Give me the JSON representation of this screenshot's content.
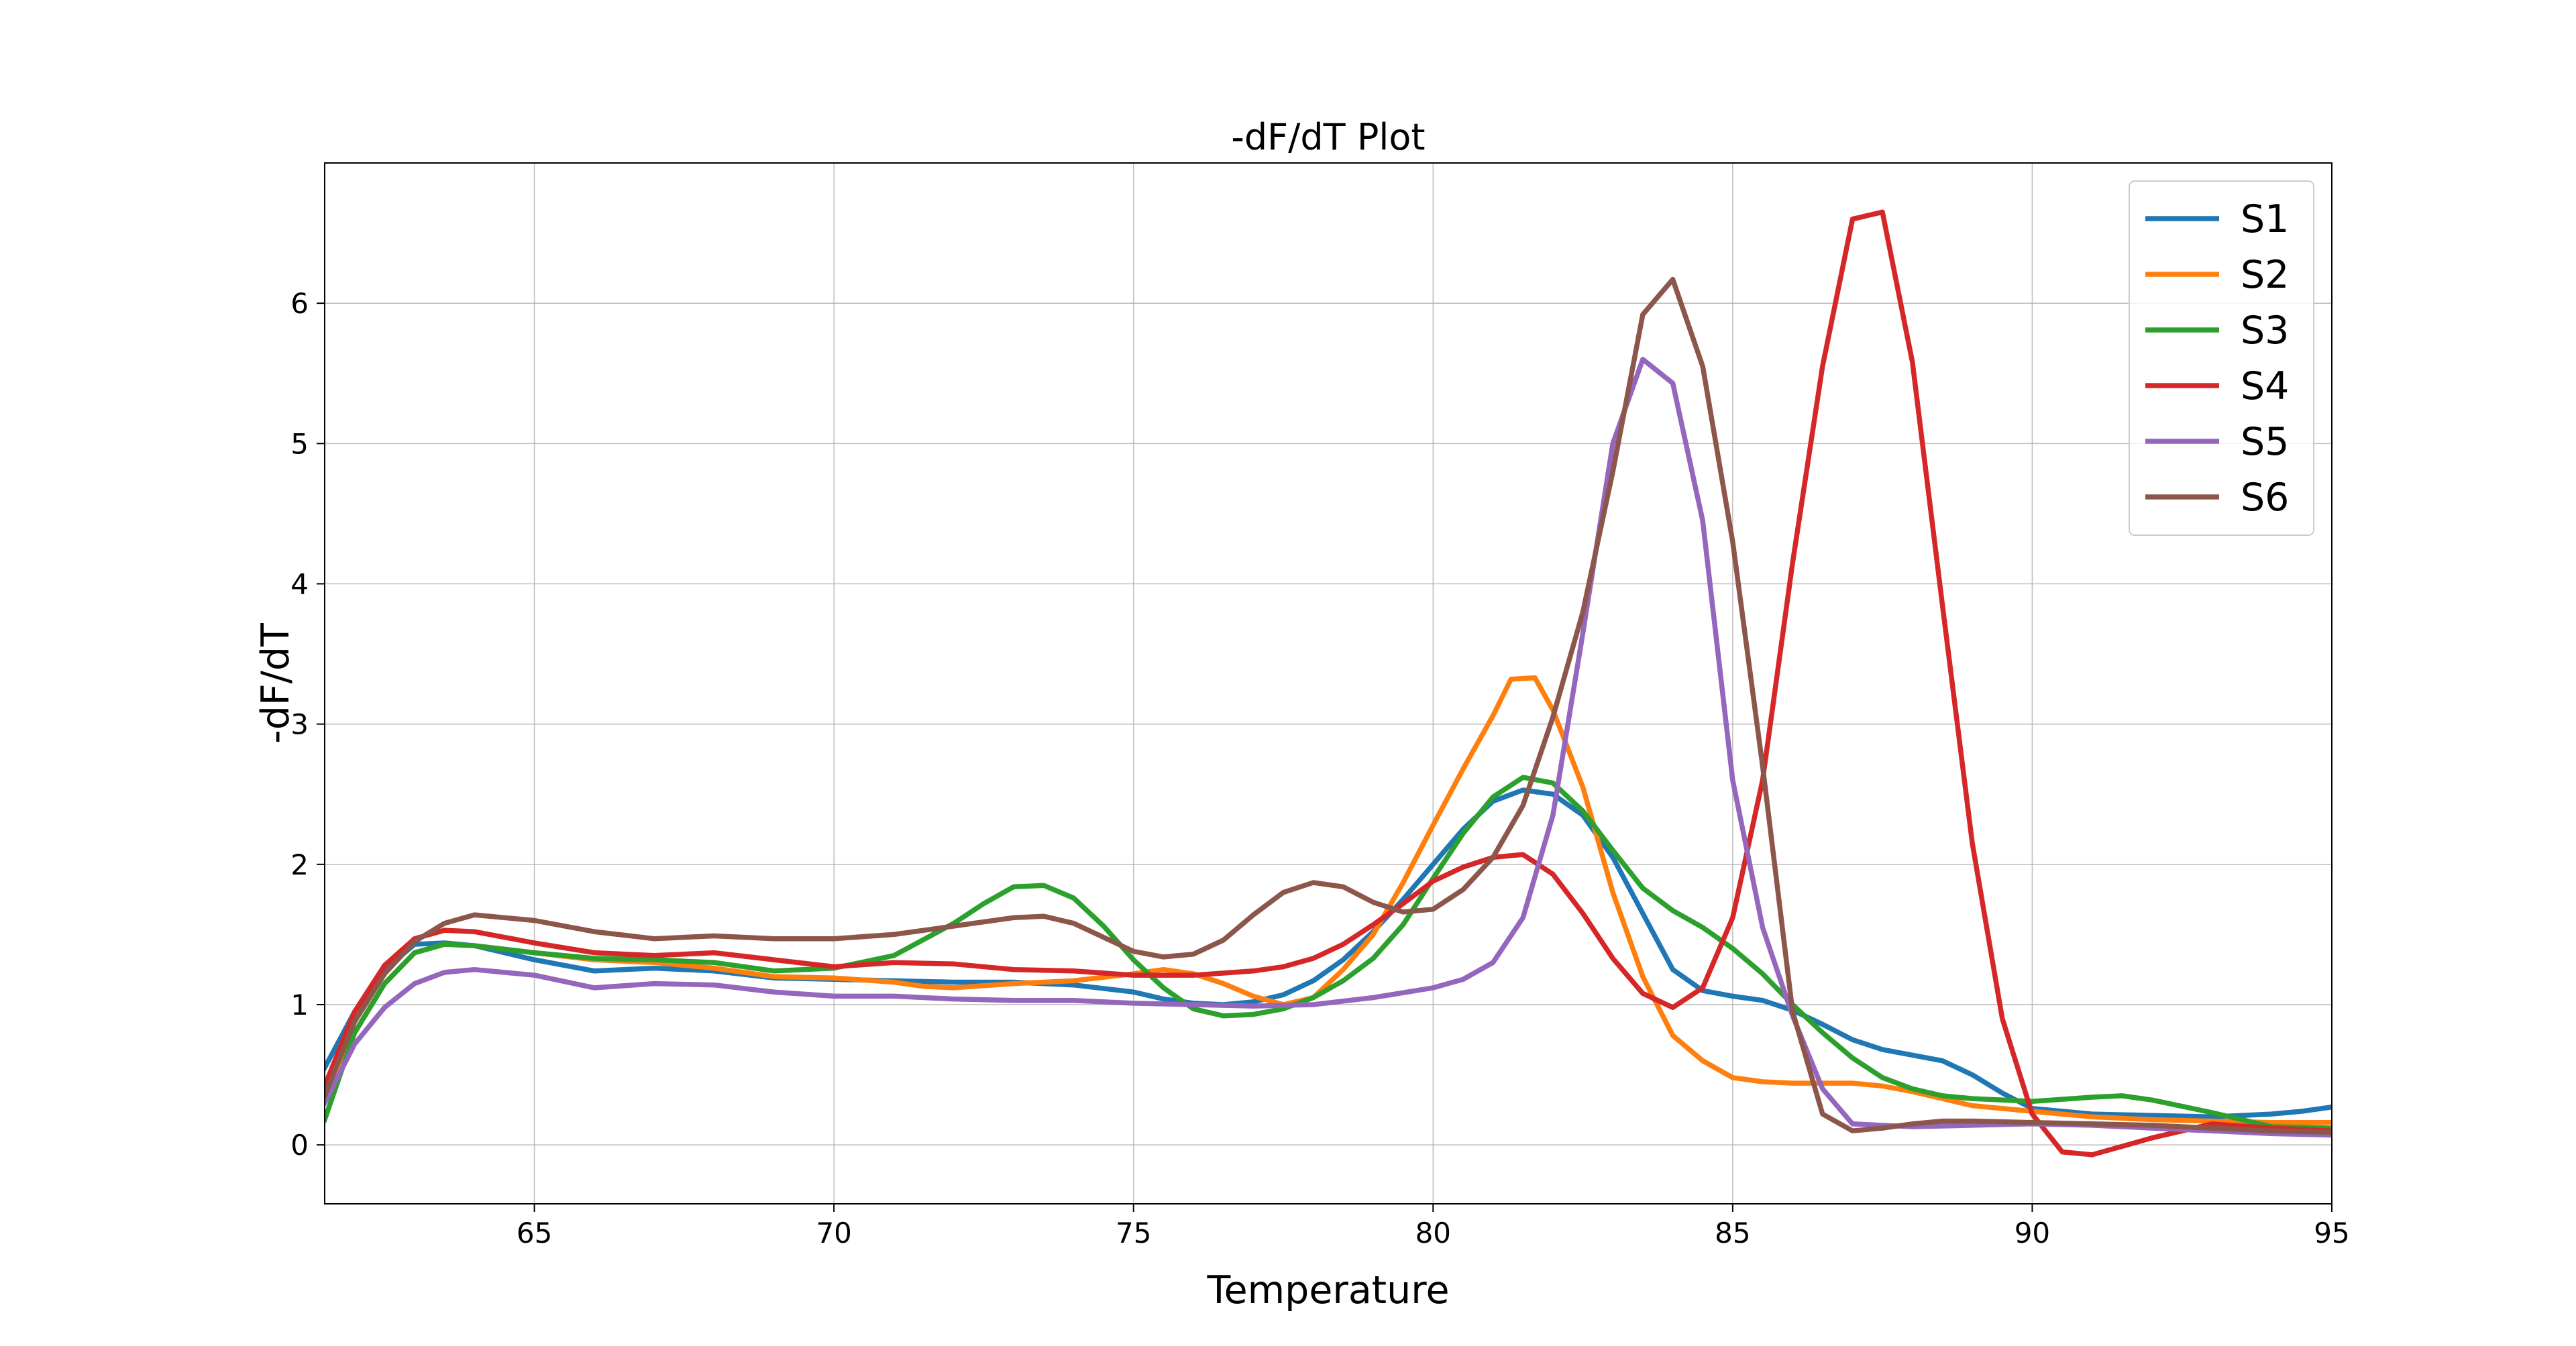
{
  "chart_data": {
    "type": "line",
    "title": "-dF/dT Plot",
    "xlabel": "Temperature",
    "ylabel": "-dF/dT",
    "xlim": [
      61.5,
      95
    ],
    "ylim": [
      -0.42,
      7.0
    ],
    "xticks": [
      65,
      70,
      75,
      80,
      85,
      90,
      95
    ],
    "yticks": [
      0,
      1,
      2,
      3,
      4,
      5,
      6
    ],
    "grid": true,
    "legend_position": "top-right",
    "series": [
      {
        "name": "S1",
        "color": "#1f77b4",
        "x": [
          61.5,
          62.0,
          62.5,
          63.0,
          63.5,
          64.0,
          65.0,
          66.0,
          67.0,
          68.0,
          69.0,
          70.0,
          71.0,
          72.0,
          73.0,
          74.0,
          75.0,
          75.5,
          76.0,
          76.5,
          77.0,
          77.5,
          78.0,
          78.5,
          79.0,
          79.5,
          80.0,
          80.5,
          81.0,
          81.5,
          82.0,
          82.5,
          83.0,
          83.5,
          84.0,
          84.5,
          85.0,
          85.5,
          86.0,
          86.5,
          87.0,
          87.5,
          88.0,
          88.5,
          89.0,
          89.5,
          90.0,
          91.0,
          92.0,
          93.0,
          94.0,
          94.5,
          95.0
        ],
        "y": [
          0.55,
          0.95,
          1.25,
          1.43,
          1.44,
          1.42,
          1.32,
          1.24,
          1.26,
          1.24,
          1.19,
          1.18,
          1.17,
          1.16,
          1.16,
          1.14,
          1.09,
          1.04,
          1.01,
          1.0,
          1.02,
          1.07,
          1.17,
          1.32,
          1.52,
          1.75,
          2.0,
          2.25,
          2.45,
          2.53,
          2.5,
          2.35,
          2.05,
          1.65,
          1.25,
          1.1,
          1.06,
          1.03,
          0.96,
          0.86,
          0.75,
          0.68,
          0.64,
          0.6,
          0.5,
          0.37,
          0.26,
          0.22,
          0.21,
          0.2,
          0.22,
          0.24,
          0.27
        ]
      },
      {
        "name": "S2",
        "color": "#ff7f0e",
        "x": [
          61.5,
          62.0,
          62.5,
          63.0,
          63.5,
          64.0,
          65.0,
          66.0,
          67.0,
          68.0,
          69.0,
          70.0,
          71.0,
          71.5,
          72.0,
          73.0,
          74.0,
          75.0,
          75.5,
          76.0,
          76.5,
          77.0,
          77.5,
          78.0,
          78.5,
          79.0,
          79.5,
          80.0,
          80.5,
          81.0,
          81.3,
          81.7,
          82.0,
          82.5,
          83.0,
          83.5,
          84.0,
          84.5,
          85.0,
          85.5,
          86.0,
          86.5,
          87.0,
          87.5,
          88.0,
          88.5,
          89.0,
          90.0,
          91.0,
          92.0,
          93.0,
          94.0,
          95.0
        ],
        "y": [
          0.38,
          0.8,
          1.15,
          1.37,
          1.43,
          1.42,
          1.37,
          1.32,
          1.3,
          1.26,
          1.2,
          1.19,
          1.16,
          1.13,
          1.12,
          1.15,
          1.17,
          1.22,
          1.25,
          1.22,
          1.15,
          1.06,
          1.0,
          1.05,
          1.25,
          1.5,
          1.87,
          2.28,
          2.68,
          3.06,
          3.32,
          3.33,
          3.1,
          2.55,
          1.8,
          1.2,
          0.78,
          0.6,
          0.48,
          0.45,
          0.44,
          0.44,
          0.44,
          0.42,
          0.38,
          0.33,
          0.28,
          0.24,
          0.2,
          0.18,
          0.17,
          0.16,
          0.16
        ]
      },
      {
        "name": "S3",
        "color": "#2ca02c",
        "x": [
          61.5,
          62.0,
          62.5,
          63.0,
          63.5,
          64.0,
          65.0,
          66.0,
          67.0,
          68.0,
          69.0,
          70.0,
          71.0,
          72.0,
          72.5,
          73.0,
          73.5,
          74.0,
          74.5,
          75.0,
          75.5,
          76.0,
          76.5,
          77.0,
          77.5,
          78.0,
          78.5,
          79.0,
          79.5,
          80.0,
          80.5,
          81.0,
          81.5,
          82.0,
          82.5,
          83.0,
          83.5,
          84.0,
          84.5,
          85.0,
          85.5,
          86.0,
          86.5,
          87.0,
          87.5,
          88.0,
          88.5,
          89.0,
          90.0,
          91.0,
          91.5,
          92.0,
          93.0,
          94.0,
          95.0
        ],
        "y": [
          0.18,
          0.8,
          1.15,
          1.37,
          1.43,
          1.42,
          1.37,
          1.33,
          1.32,
          1.3,
          1.24,
          1.26,
          1.35,
          1.58,
          1.72,
          1.84,
          1.85,
          1.76,
          1.56,
          1.32,
          1.12,
          0.97,
          0.92,
          0.93,
          0.97,
          1.05,
          1.17,
          1.33,
          1.57,
          1.9,
          2.22,
          2.48,
          2.62,
          2.58,
          2.38,
          2.1,
          1.83,
          1.67,
          1.55,
          1.4,
          1.22,
          1.0,
          0.8,
          0.62,
          0.48,
          0.4,
          0.35,
          0.33,
          0.31,
          0.34,
          0.35,
          0.32,
          0.23,
          0.13,
          0.12
        ]
      },
      {
        "name": "S4",
        "color": "#d62728",
        "x": [
          61.5,
          62.0,
          62.5,
          63.0,
          63.5,
          64.0,
          65.0,
          66.0,
          67.0,
          68.0,
          69.0,
          70.0,
          71.0,
          72.0,
          73.0,
          74.0,
          75.0,
          76.0,
          77.0,
          77.5,
          78.0,
          78.5,
          79.0,
          79.5,
          80.0,
          80.5,
          81.0,
          81.5,
          82.0,
          82.5,
          83.0,
          83.5,
          84.0,
          84.5,
          85.0,
          85.5,
          86.0,
          86.5,
          87.0,
          87.5,
          88.0,
          88.5,
          89.0,
          89.5,
          90.0,
          90.5,
          91.0,
          92.0,
          93.0,
          94.0,
          95.0
        ],
        "y": [
          0.42,
          0.95,
          1.28,
          1.47,
          1.53,
          1.52,
          1.44,
          1.37,
          1.35,
          1.37,
          1.32,
          1.27,
          1.3,
          1.29,
          1.25,
          1.24,
          1.21,
          1.21,
          1.24,
          1.27,
          1.33,
          1.43,
          1.57,
          1.72,
          1.88,
          1.98,
          2.05,
          2.07,
          1.93,
          1.65,
          1.33,
          1.08,
          0.98,
          1.12,
          1.62,
          2.6,
          4.15,
          5.55,
          6.6,
          6.65,
          5.58,
          3.85,
          2.15,
          0.9,
          0.22,
          -0.05,
          -0.07,
          0.05,
          0.15,
          0.12,
          0.1
        ]
      },
      {
        "name": "S5",
        "color": "#9467bd",
        "x": [
          61.5,
          62.0,
          62.5,
          63.0,
          63.5,
          64.0,
          65.0,
          66.0,
          67.0,
          68.0,
          69.0,
          70.0,
          71.0,
          72.0,
          73.0,
          74.0,
          75.0,
          76.0,
          77.0,
          78.0,
          79.0,
          80.0,
          80.5,
          81.0,
          81.5,
          82.0,
          82.5,
          83.0,
          83.5,
          84.0,
          84.5,
          85.0,
          85.5,
          86.0,
          86.5,
          87.0,
          88.0,
          89.0,
          90.0,
          91.0,
          92.0,
          93.0,
          94.0,
          95.0
        ],
        "y": [
          0.3,
          0.72,
          0.98,
          1.15,
          1.23,
          1.25,
          1.21,
          1.12,
          1.15,
          1.14,
          1.09,
          1.06,
          1.06,
          1.04,
          1.03,
          1.03,
          1.01,
          1.0,
          0.99,
          1.0,
          1.05,
          1.12,
          1.18,
          1.3,
          1.62,
          2.35,
          3.65,
          5.0,
          5.6,
          5.43,
          4.45,
          2.6,
          1.55,
          0.92,
          0.4,
          0.15,
          0.13,
          0.14,
          0.15,
          0.14,
          0.12,
          0.1,
          0.08,
          0.07
        ]
      },
      {
        "name": "S6",
        "color": "#8c564b",
        "x": [
          61.5,
          62.0,
          62.5,
          63.0,
          63.5,
          64.0,
          65.0,
          66.0,
          67.0,
          68.0,
          69.0,
          70.0,
          71.0,
          72.0,
          73.0,
          73.5,
          74.0,
          74.5,
          75.0,
          75.5,
          76.0,
          76.5,
          77.0,
          77.5,
          78.0,
          78.5,
          79.0,
          79.5,
          80.0,
          80.5,
          81.0,
          81.5,
          82.0,
          82.5,
          83.0,
          83.5,
          84.0,
          84.5,
          85.0,
          85.5,
          86.0,
          86.5,
          87.0,
          87.5,
          88.0,
          88.5,
          89.0,
          90.0,
          91.0,
          92.0,
          93.0,
          94.0,
          95.0
        ],
        "y": [
          0.35,
          0.88,
          1.22,
          1.45,
          1.58,
          1.64,
          1.6,
          1.52,
          1.47,
          1.49,
          1.47,
          1.47,
          1.5,
          1.56,
          1.62,
          1.63,
          1.58,
          1.48,
          1.38,
          1.34,
          1.36,
          1.46,
          1.64,
          1.8,
          1.87,
          1.84,
          1.73,
          1.66,
          1.68,
          1.82,
          2.05,
          2.42,
          3.05,
          3.8,
          4.8,
          5.92,
          6.17,
          5.55,
          4.3,
          2.7,
          0.95,
          0.22,
          0.1,
          0.12,
          0.15,
          0.17,
          0.17,
          0.16,
          0.15,
          0.14,
          0.12,
          0.1,
          0.09
        ]
      }
    ]
  }
}
